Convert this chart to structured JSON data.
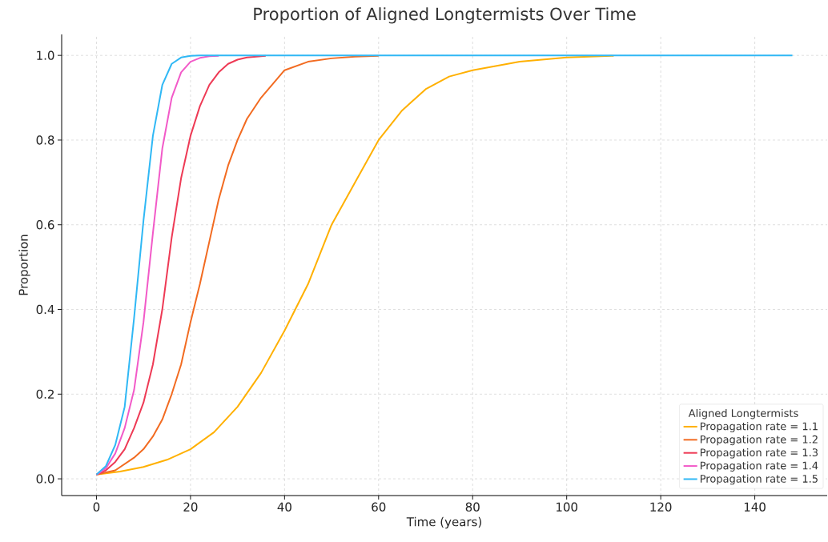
{
  "chart_data": {
    "type": "line",
    "title": "Proportion of Aligned Longtermists Over Time",
    "xlabel": "Time (years)",
    "ylabel": "Proportion",
    "legend_title": "Aligned Longtermists",
    "legend": "bottom right",
    "grid": true,
    "xlim": [
      -7.4,
      155.4
    ],
    "ylim": [
      -0.0395,
      1.0495
    ],
    "xticks": [
      0,
      20,
      40,
      60,
      80,
      100,
      120,
      140
    ],
    "yticks": [
      {
        "value": 0,
        "label": "0.0"
      },
      0.2,
      0.4,
      0.6,
      0.8,
      {
        "value": 1,
        "label": "1.0"
      }
    ],
    "series": [
      {
        "name": "Propagation rate = 1.1",
        "color": "#ffb000",
        "x": [
          0,
          5,
          10,
          15,
          20,
          25,
          30,
          35,
          40,
          45,
          50,
          55,
          60,
          65,
          70,
          75,
          80,
          90,
          100,
          110
        ],
        "values": [
          0.01,
          0.017,
          0.028,
          0.045,
          0.07,
          0.11,
          0.17,
          0.25,
          0.35,
          0.46,
          0.6,
          0.7,
          0.8,
          0.87,
          0.92,
          0.95,
          0.965,
          0.985,
          0.995,
          0.999
        ]
      },
      {
        "name": "Propagation rate = 1.2",
        "color": "#f26b21",
        "x": [
          0,
          4,
          8,
          10,
          12,
          14,
          16,
          18,
          20,
          22,
          24,
          26,
          28,
          30,
          32,
          35,
          40,
          45,
          50,
          55,
          60
        ],
        "values": [
          0.01,
          0.02,
          0.05,
          0.07,
          0.1,
          0.14,
          0.2,
          0.27,
          0.37,
          0.46,
          0.56,
          0.66,
          0.74,
          0.8,
          0.85,
          0.9,
          0.965,
          0.985,
          0.993,
          0.997,
          0.999
        ]
      },
      {
        "name": "Propagation rate = 1.3",
        "color": "#ee3a55",
        "x": [
          0,
          2,
          4,
          6,
          8,
          10,
          12,
          14,
          16,
          18,
          20,
          22,
          24,
          26,
          28,
          30,
          32,
          36
        ],
        "values": [
          0.01,
          0.02,
          0.04,
          0.07,
          0.12,
          0.18,
          0.27,
          0.4,
          0.57,
          0.71,
          0.81,
          0.88,
          0.93,
          0.96,
          0.98,
          0.99,
          0.995,
          0.999
        ]
      },
      {
        "name": "Propagation rate = 1.4",
        "color": "#f25ac8",
        "x": [
          0,
          2,
          4,
          6,
          8,
          10,
          12,
          14,
          16,
          18,
          20,
          22,
          24,
          26
        ],
        "values": [
          0.01,
          0.025,
          0.06,
          0.12,
          0.21,
          0.37,
          0.58,
          0.78,
          0.9,
          0.96,
          0.985,
          0.994,
          0.998,
          0.999
        ]
      },
      {
        "name": "Propagation rate = 1.5",
        "color": "#30b8f5",
        "x": [
          0,
          2,
          4,
          6,
          8,
          10,
          12,
          14,
          16,
          18,
          20,
          22,
          148
        ],
        "values": [
          0.01,
          0.03,
          0.08,
          0.17,
          0.38,
          0.61,
          0.81,
          0.93,
          0.98,
          0.995,
          0.999,
          1.0,
          1.0
        ]
      }
    ]
  }
}
